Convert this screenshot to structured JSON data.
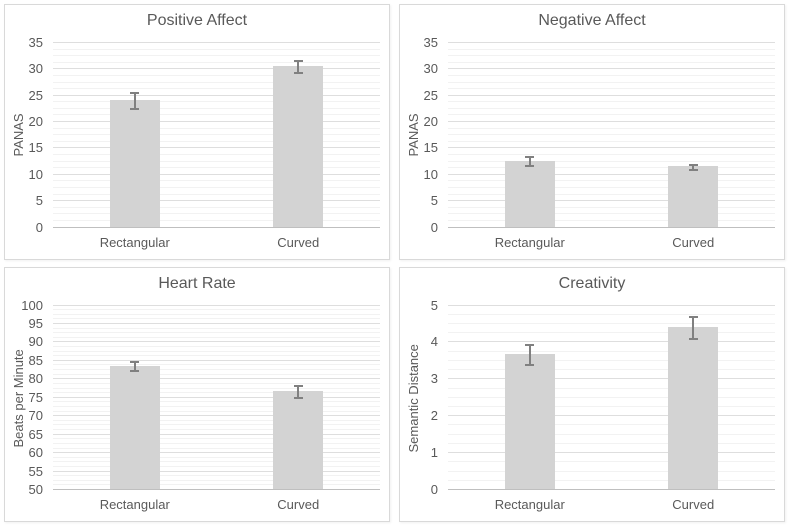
{
  "page": {
    "background": "#ffffff"
  },
  "style": {
    "bar_fill": "#d3d3d3",
    "error_bar_color": "#808080",
    "major_grid_color": "#dedede",
    "minor_grid_color": "#f2f2f2",
    "axis_line_color": "#bfbfbf",
    "text_color": "#595959",
    "panel_border_color": "#d9d9d9"
  },
  "chart_data": [
    {
      "type": "bar",
      "title": "Positive Affect",
      "xlabel": "",
      "ylabel": "PANAS",
      "categories": [
        "Rectangular",
        "Curved"
      ],
      "values": [
        24.0,
        30.5
      ],
      "errors": [
        1.5,
        1.1
      ],
      "ylim": [
        0,
        35
      ],
      "y_major": 5,
      "y_minor": 1.25,
      "grid": true,
      "legend": "none"
    },
    {
      "type": "bar",
      "title": "Negative Affect",
      "xlabel": "",
      "ylabel": "PANAS",
      "categories": [
        "Rectangular",
        "Curved"
      ],
      "values": [
        12.5,
        11.4
      ],
      "errors": [
        0.9,
        0.5
      ],
      "ylim": [
        0,
        35
      ],
      "y_major": 5,
      "y_minor": 1.25,
      "grid": true,
      "legend": "none"
    },
    {
      "type": "bar",
      "title": "Heart Rate",
      "xlabel": "",
      "ylabel": "Beats per Minute",
      "categories": [
        "Rectangular",
        "Curved"
      ],
      "values": [
        83.4,
        76.6
      ],
      "errors": [
        1.2,
        1.7
      ],
      "ylim": [
        50,
        100
      ],
      "y_major": 5,
      "y_minor": 1.25,
      "grid": true,
      "legend": "none"
    },
    {
      "type": "bar",
      "title": "Creativity",
      "xlabel": "",
      "ylabel": "Semantic Distance",
      "categories": [
        "Rectangular",
        "Curved"
      ],
      "values": [
        3.65,
        4.4
      ],
      "errors": [
        0.27,
        0.3
      ],
      "ylim": [
        0,
        5
      ],
      "y_major": 1,
      "y_minor": 0.25,
      "grid": true,
      "legend": "none"
    }
  ]
}
